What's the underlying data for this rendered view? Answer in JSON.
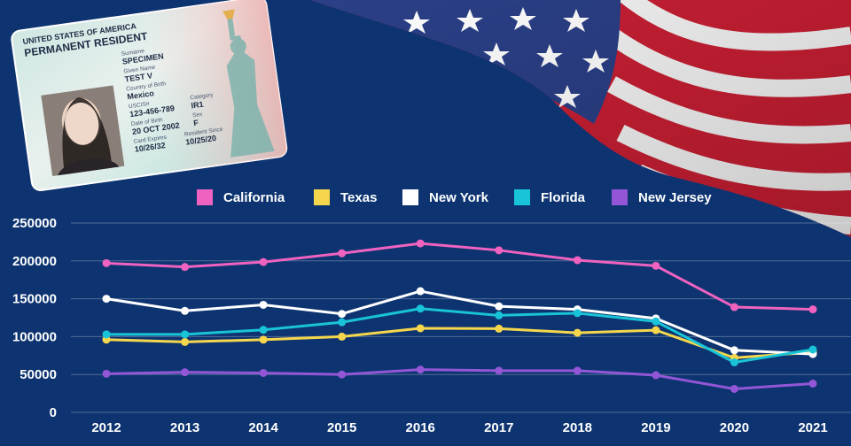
{
  "card": {
    "country": "UNITED STATES OF AMERICA",
    "title": "PERMANENT RESIDENT",
    "surname_label": "Surname",
    "surname": "SPECIMEN",
    "given_label": "Given Name",
    "given": "TEST V",
    "country_label": "Country of Birth",
    "country_of_birth": "Mexico",
    "uscis_label": "USCIS#",
    "uscis": "123-456-789",
    "category_label": "Category",
    "category": "IR1",
    "dob_label": "Date of Birth",
    "dob": "20 OCT 2002",
    "sex_label": "Sex",
    "sex": "F",
    "expires_label": "Card Expires",
    "expires": "10/26/32",
    "since_label": "Resident Since",
    "since": "10/25/20"
  },
  "colors": {
    "background": "#0d3470",
    "California": "#f062c0",
    "Texas": "#f5d64c",
    "New York": "#ffffff",
    "Florida": "#19c4d8",
    "New Jersey": "#9356d6"
  },
  "chart_data": {
    "type": "line",
    "title": "",
    "xlabel": "",
    "ylabel": "",
    "x": [
      "2012",
      "2013",
      "2014",
      "2015",
      "2016",
      "2017",
      "2018",
      "2019",
      "2020",
      "2021"
    ],
    "ylim": [
      0,
      250000
    ],
    "yticks": [
      "0",
      "50000",
      "100000",
      "150000",
      "200000",
      "250000"
    ],
    "grid": true,
    "legend_position": "top",
    "series": [
      {
        "name": "California",
        "values": [
          197000,
          192000,
          198500,
          210000,
          223000,
          214000,
          201000,
          193500,
          139000,
          136000
        ]
      },
      {
        "name": "Texas",
        "values": [
          96000,
          93000,
          96000,
          100000,
          111000,
          110500,
          105000,
          108500,
          72000,
          79500
        ]
      },
      {
        "name": "New York",
        "values": [
          150000,
          134000,
          142000,
          130000,
          160000,
          140000,
          136000,
          124000,
          82000,
          77000
        ]
      },
      {
        "name": "Florida",
        "values": [
          103000,
          103000,
          109000,
          119000,
          137000,
          128000,
          131000,
          120000,
          66000,
          83000
        ]
      },
      {
        "name": "New Jersey",
        "values": [
          51000,
          53000,
          52000,
          50000,
          56500,
          55000,
          55000,
          49000,
          31000,
          38000
        ]
      }
    ]
  }
}
